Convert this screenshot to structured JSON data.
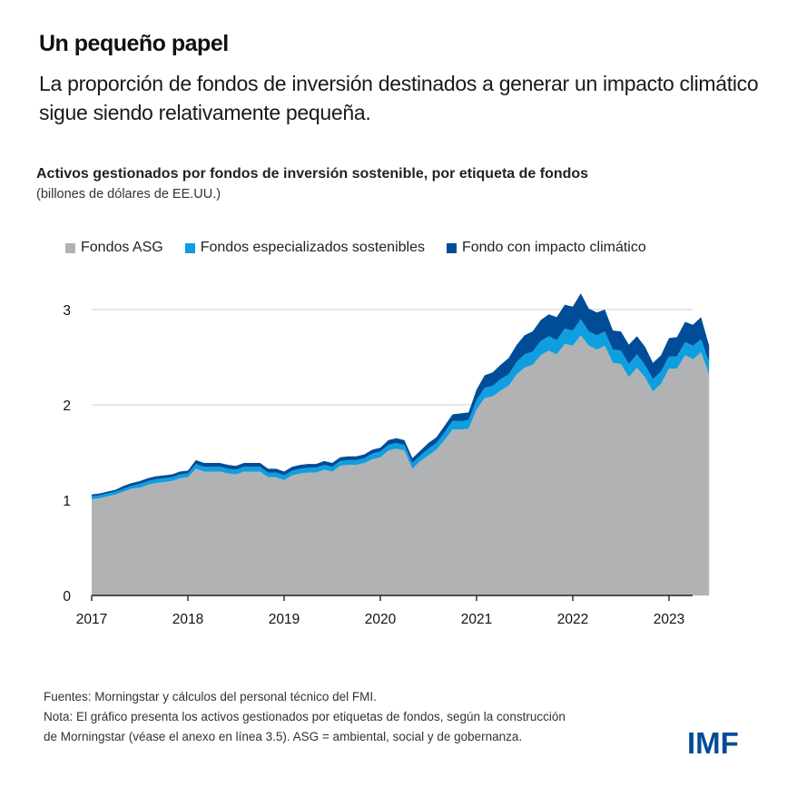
{
  "header": {
    "title": "Un pequeño papel",
    "subtitle": "La proporción de fondos de inversión destinados a generar un impacto climático sigue siendo relativamente pequeña."
  },
  "chart_data": {
    "type": "area",
    "stacked": true,
    "title": "Activos gestionados por fondos de inversión sostenible, por etiqueta de fondos",
    "units": "(billones de dólares de EE.UU.)",
    "xlabel": "",
    "ylabel": "",
    "ylim": [
      0,
      3.3
    ],
    "yticks": [
      0,
      1,
      2,
      3
    ],
    "xticks": [
      "2017",
      "2018",
      "2019",
      "2020",
      "2021",
      "2022",
      "2023"
    ],
    "x_start": "2017-01",
    "frequency": "monthly",
    "grid": true,
    "legend_position": "top",
    "series": [
      {
        "name": "Fondos ASG",
        "color": "#b1b2b3",
        "values": [
          1.01,
          1.02,
          1.04,
          1.06,
          1.09,
          1.12,
          1.13,
          1.16,
          1.18,
          1.19,
          1.2,
          1.23,
          1.24,
          1.33,
          1.3,
          1.3,
          1.3,
          1.28,
          1.27,
          1.3,
          1.3,
          1.3,
          1.24,
          1.24,
          1.21,
          1.26,
          1.28,
          1.29,
          1.29,
          1.32,
          1.3,
          1.36,
          1.37,
          1.37,
          1.39,
          1.43,
          1.45,
          1.52,
          1.54,
          1.52,
          1.33,
          1.41,
          1.47,
          1.53,
          1.63,
          1.74,
          1.74,
          1.75,
          1.95,
          2.07,
          2.09,
          2.15,
          2.2,
          2.32,
          2.39,
          2.42,
          2.52,
          2.57,
          2.53,
          2.64,
          2.62,
          2.73,
          2.62,
          2.58,
          2.62,
          2.44,
          2.43,
          2.29,
          2.39,
          2.29,
          2.14,
          2.22,
          2.38,
          2.38,
          2.52,
          2.48,
          2.55,
          2.32
        ]
      },
      {
        "name": "Fondos especializados sostenibles",
        "color": "#0f9ee0",
        "values": [
          0.03,
          0.03,
          0.03,
          0.03,
          0.03,
          0.03,
          0.04,
          0.04,
          0.04,
          0.04,
          0.04,
          0.04,
          0.04,
          0.05,
          0.05,
          0.05,
          0.05,
          0.05,
          0.05,
          0.05,
          0.05,
          0.05,
          0.05,
          0.05,
          0.05,
          0.05,
          0.05,
          0.05,
          0.05,
          0.05,
          0.05,
          0.05,
          0.05,
          0.05,
          0.05,
          0.06,
          0.06,
          0.06,
          0.06,
          0.06,
          0.06,
          0.06,
          0.07,
          0.07,
          0.08,
          0.09,
          0.09,
          0.09,
          0.1,
          0.11,
          0.11,
          0.12,
          0.12,
          0.13,
          0.14,
          0.14,
          0.15,
          0.15,
          0.15,
          0.16,
          0.16,
          0.17,
          0.15,
          0.15,
          0.15,
          0.14,
          0.14,
          0.14,
          0.14,
          0.13,
          0.13,
          0.13,
          0.13,
          0.13,
          0.14,
          0.14,
          0.14,
          0.13
        ]
      },
      {
        "name": "Fondo con impacto climático",
        "color": "#004c97",
        "values": [
          0.02,
          0.02,
          0.02,
          0.02,
          0.03,
          0.03,
          0.03,
          0.03,
          0.03,
          0.03,
          0.03,
          0.03,
          0.03,
          0.04,
          0.04,
          0.04,
          0.04,
          0.04,
          0.04,
          0.04,
          0.04,
          0.04,
          0.04,
          0.04,
          0.04,
          0.04,
          0.04,
          0.04,
          0.04,
          0.04,
          0.04,
          0.04,
          0.04,
          0.04,
          0.04,
          0.04,
          0.04,
          0.05,
          0.05,
          0.05,
          0.05,
          0.05,
          0.06,
          0.06,
          0.07,
          0.07,
          0.08,
          0.08,
          0.11,
          0.13,
          0.14,
          0.15,
          0.17,
          0.18,
          0.2,
          0.21,
          0.22,
          0.23,
          0.24,
          0.25,
          0.25,
          0.27,
          0.24,
          0.24,
          0.23,
          0.2,
          0.2,
          0.2,
          0.19,
          0.19,
          0.17,
          0.17,
          0.19,
          0.2,
          0.21,
          0.22,
          0.23,
          0.17
        ]
      }
    ]
  },
  "footer": {
    "sources": "Fuentes: Morningstar y cálculos del personal técnico del FMI.",
    "note_line1": "Nota: El gráfico presenta los activos gestionados por etiquetas de fondos, según la construcción",
    "note_line2": "de Morningstar (véase el anexo en línea 3.5). ASG = ambiental, social y de gobernanza.",
    "logo": "IMF"
  }
}
